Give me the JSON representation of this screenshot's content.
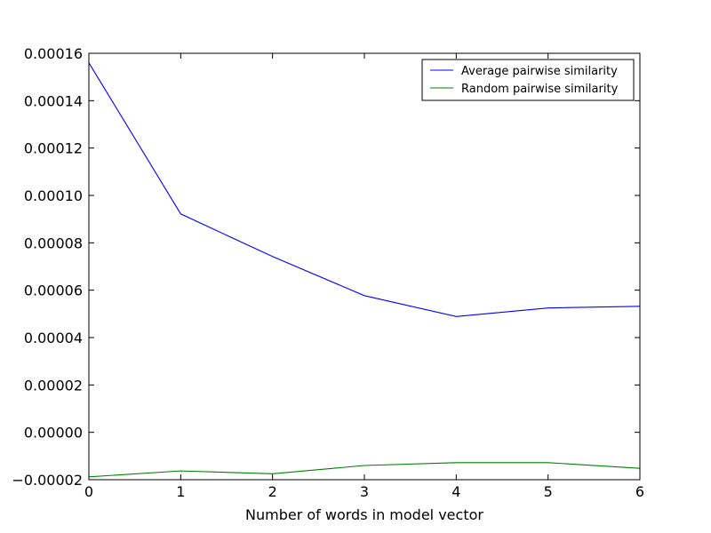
{
  "chart_data": {
    "type": "line",
    "title": "",
    "xlabel": "Number of words in model vector",
    "ylabel": "",
    "xlim": [
      0,
      6
    ],
    "ylim": [
      -2e-05,
      0.00016
    ],
    "grid": false,
    "legend_position": "top-right",
    "x": [
      0,
      1,
      2,
      3,
      4,
      5,
      6
    ],
    "xticks": [
      {
        "value": 0,
        "label": "0"
      },
      {
        "value": 1,
        "label": "1"
      },
      {
        "value": 2,
        "label": "2"
      },
      {
        "value": 3,
        "label": "3"
      },
      {
        "value": 4,
        "label": "4"
      },
      {
        "value": 5,
        "label": "5"
      },
      {
        "value": 6,
        "label": "6"
      }
    ],
    "yticks": [
      {
        "value": 0.00016,
        "label": "0.00016"
      },
      {
        "value": 0.00014,
        "label": "0.00014"
      },
      {
        "value": 0.00012,
        "label": "0.00012"
      },
      {
        "value": 0.0001,
        "label": "0.00010"
      },
      {
        "value": 8e-05,
        "label": "0.00008"
      },
      {
        "value": 6e-05,
        "label": "0.00006"
      },
      {
        "value": 4e-05,
        "label": "0.00004"
      },
      {
        "value": 2e-05,
        "label": "0.00002"
      },
      {
        "value": 0.0,
        "label": "0.00000"
      },
      {
        "value": -2e-05,
        "label": "−0.00002"
      }
    ],
    "series": [
      {
        "name": "Average pairwise similarity",
        "color": "#0000ff",
        "values": [
          0.000156,
          9.22e-05,
          7.42e-05,
          5.77e-05,
          4.89e-05,
          5.25e-05,
          5.32e-05
        ]
      },
      {
        "name": "Random pairwise similarity",
        "color": "#008000",
        "values": [
          -1.88e-05,
          -1.63e-05,
          -1.75e-05,
          -1.4e-05,
          -1.28e-05,
          -1.28e-05,
          -1.52e-05
        ]
      }
    ]
  }
}
